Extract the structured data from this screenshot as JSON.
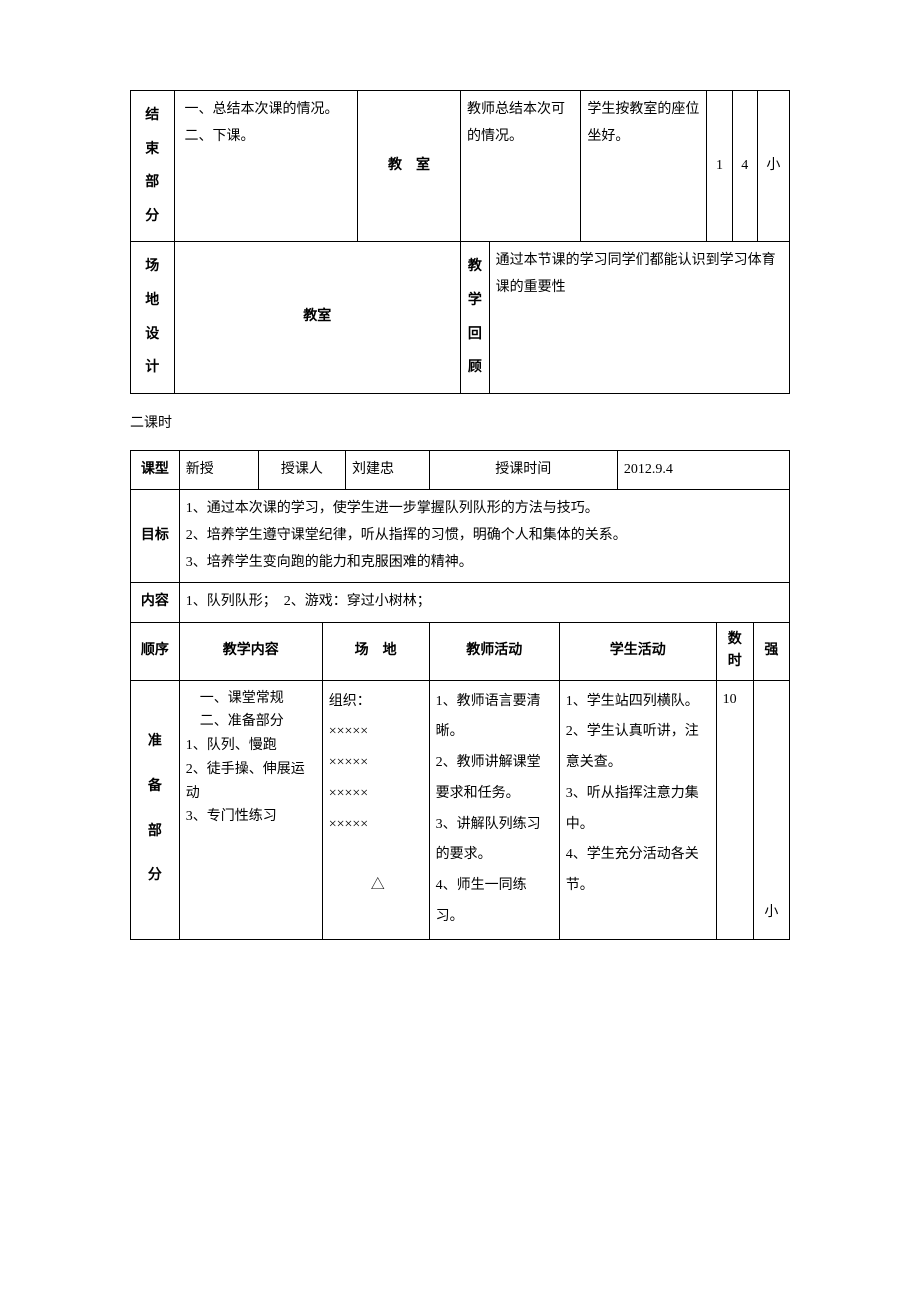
{
  "table1": {
    "row_end": {
      "header": "结束部分",
      "content": "一、总结本次课的情况。\n二、下课。",
      "venue": "教　室",
      "teacher": "教师总结本次可的情况。",
      "student": "学生按教室的座位坐好。",
      "num1": "1",
      "num2": "4",
      "intensity": "小"
    },
    "row_venue_design": {
      "header": "场地设计",
      "content": "教室",
      "review_label": "教学回顾",
      "review_content": "通过本节课的学习同学们都能认识到学习体育课的重要性"
    }
  },
  "subtitle": "二课时",
  "table2": {
    "row_type": {
      "label_type": "课型",
      "type_value": "新授",
      "label_teacher": "授课人",
      "teacher_value": "刘建忠",
      "label_time": "授课时间",
      "time_value": "2012.9.4"
    },
    "row_goal": {
      "label": "目标",
      "content": "1、通过本次课的学习，使学生进一步掌握队列队形的方法与技巧。\n2、培养学生遵守课堂纪律，听从指挥的习惯，明确个人和集体的关系。\n3、培养学生变向跑的能力和克服困难的精神。"
    },
    "row_content": {
      "label": "内容",
      "content": "1、队列队形；　2、游戏：穿过小树林；"
    },
    "row_header": {
      "order": "顺序",
      "teach_content": "教学内容",
      "venue": "场　地",
      "teacher_act": "教师活动",
      "student_act": "学生活动",
      "count": "数",
      "time": "时",
      "intensity": "强"
    },
    "row_prep": {
      "header": "准备部分",
      "content": "　一、课堂常规\n　二、准备部分\n1、队列、慢跑\n2、徒手操、伸展运动\n3、专门性练习",
      "venue": "组织：\n×××××\n×××××\n×××××\n×××××\n\n　　　△",
      "teacher": "1、教师语言要清晰。\n2、教师讲解课堂要求和任务。\n3、讲解队列练习的要求。\n4、师生一同练习。",
      "student": "1、学生站四列横队。\n2、学生认真听讲，注意关查。\n3、听从指挥注意力集中。\n4、学生充分活动各关节。",
      "count": "10",
      "intensity": "小"
    }
  }
}
